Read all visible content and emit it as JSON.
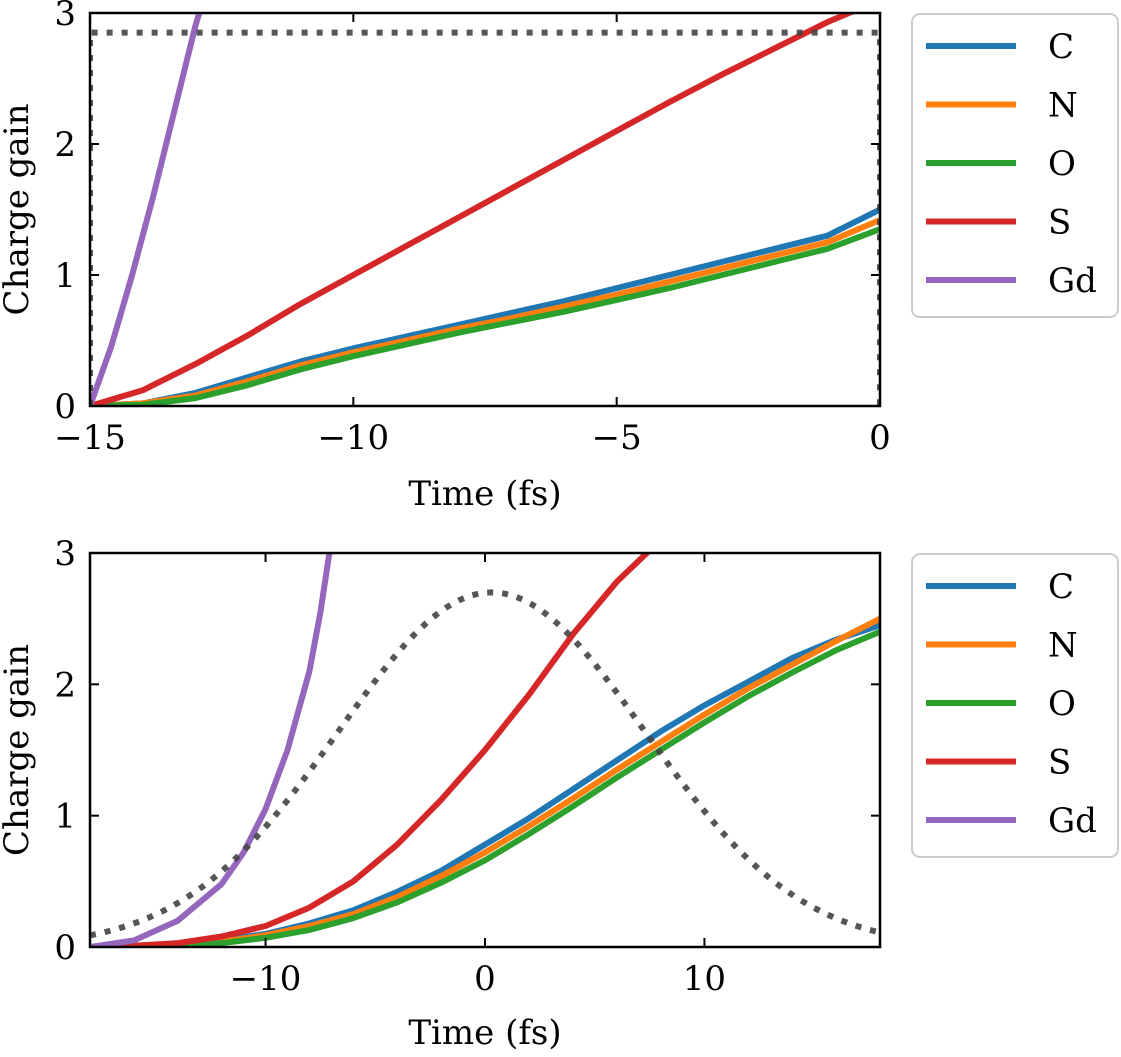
{
  "chart_data": [
    {
      "type": "line",
      "title": "",
      "xlabel": "Time (fs)",
      "ylabel": "Charge gain",
      "xlim": [
        -15,
        0
      ],
      "ylim": [
        0,
        3
      ],
      "xticks": [
        -15,
        -10,
        -5,
        0
      ],
      "xtick_labels": [
        "−15",
        "−10",
        "−5",
        "0"
      ],
      "yticks": [
        0,
        1,
        2,
        3
      ],
      "ytick_labels": [
        "0",
        "1",
        "2",
        "3"
      ],
      "legend_position": "outside-right",
      "series": [
        {
          "name": "C",
          "color": "#1f77b4",
          "x": [
            -15,
            -14,
            -13,
            -12,
            -11,
            -10,
            -9,
            -8,
            -7,
            -6,
            -5,
            -4,
            -3,
            -2,
            -1,
            0
          ],
          "y": [
            0,
            0.02,
            0.1,
            0.22,
            0.34,
            0.44,
            0.53,
            0.62,
            0.71,
            0.8,
            0.9,
            1.0,
            1.1,
            1.2,
            1.3,
            1.5
          ]
        },
        {
          "name": "N",
          "color": "#ff7f0e",
          "x": [
            -15,
            -14,
            -13,
            -12,
            -11,
            -10,
            -9,
            -8,
            -7,
            -6,
            -5,
            -4,
            -3,
            -2,
            -1,
            0
          ],
          "y": [
            0,
            0.02,
            0.08,
            0.19,
            0.31,
            0.41,
            0.5,
            0.59,
            0.67,
            0.76,
            0.85,
            0.95,
            1.05,
            1.15,
            1.25,
            1.42
          ]
        },
        {
          "name": "O",
          "color": "#2ca02c",
          "x": [
            -15,
            -14,
            -13,
            -12,
            -11,
            -10,
            -9,
            -8,
            -7,
            -6,
            -5,
            -4,
            -3,
            -2,
            -1,
            0
          ],
          "y": [
            0,
            0.01,
            0.06,
            0.16,
            0.28,
            0.38,
            0.47,
            0.56,
            0.64,
            0.72,
            0.81,
            0.9,
            1.0,
            1.1,
            1.2,
            1.35
          ]
        },
        {
          "name": "S",
          "color": "#d62728",
          "x": [
            -15,
            -14,
            -13,
            -12,
            -11,
            -10,
            -9,
            -8,
            -7,
            -6,
            -5,
            -4,
            -3,
            -2,
            -1,
            0
          ],
          "y": [
            0,
            0.12,
            0.32,
            0.54,
            0.78,
            1.0,
            1.22,
            1.44,
            1.66,
            1.88,
            2.1,
            2.32,
            2.53,
            2.73,
            2.93,
            3.1
          ]
        },
        {
          "name": "Gd",
          "color": "#9467bd",
          "x": [
            -15,
            -14.6,
            -14.2,
            -13.8,
            -13.4,
            -13.0,
            -12.7
          ],
          "y": [
            0,
            0.45,
            1.0,
            1.6,
            2.25,
            2.9,
            3.3
          ]
        },
        {
          "name": "pulse",
          "color": "#444444",
          "style": "dotted",
          "legend": false,
          "x": [
            -15,
            -15,
            0,
            0
          ],
          "y": [
            0,
            2.85,
            2.85,
            0
          ]
        }
      ]
    },
    {
      "type": "line",
      "title": "",
      "xlabel": "Time (fs)",
      "ylabel": "Charge gain",
      "xlim": [
        -18,
        18
      ],
      "ylim": [
        0,
        3
      ],
      "xticks": [
        -10,
        0,
        10
      ],
      "xtick_labels": [
        "−10",
        "0",
        "10"
      ],
      "yticks": [
        0,
        1,
        2,
        3
      ],
      "ytick_labels": [
        "0",
        "1",
        "2",
        "3"
      ],
      "legend_position": "outside-right",
      "series": [
        {
          "name": "C",
          "color": "#1f77b4",
          "x": [
            -18,
            -16,
            -14,
            -12,
            -10,
            -8,
            -6,
            -4,
            -2,
            0,
            2,
            4,
            6,
            8,
            10,
            12,
            14,
            16,
            18
          ],
          "y": [
            0,
            0.01,
            0.02,
            0.05,
            0.1,
            0.18,
            0.28,
            0.42,
            0.58,
            0.78,
            0.98,
            1.2,
            1.42,
            1.64,
            1.84,
            2.02,
            2.2,
            2.34,
            2.45
          ]
        },
        {
          "name": "N",
          "color": "#ff7f0e",
          "x": [
            -18,
            -16,
            -14,
            -12,
            -10,
            -8,
            -6,
            -4,
            -2,
            0,
            2,
            4,
            6,
            8,
            10,
            12,
            14,
            16,
            18
          ],
          "y": [
            0,
            0.01,
            0.02,
            0.04,
            0.09,
            0.16,
            0.25,
            0.38,
            0.54,
            0.72,
            0.92,
            1.13,
            1.35,
            1.56,
            1.77,
            1.97,
            2.15,
            2.33,
            2.5
          ]
        },
        {
          "name": "O",
          "color": "#2ca02c",
          "x": [
            -18,
            -16,
            -14,
            -12,
            -10,
            -8,
            -6,
            -4,
            -2,
            0,
            2,
            4,
            6,
            8,
            10,
            12,
            14,
            16,
            18
          ],
          "y": [
            0,
            0.005,
            0.01,
            0.03,
            0.07,
            0.13,
            0.22,
            0.34,
            0.49,
            0.66,
            0.86,
            1.07,
            1.29,
            1.5,
            1.71,
            1.91,
            2.09,
            2.26,
            2.4
          ]
        },
        {
          "name": "S",
          "color": "#d62728",
          "x": [
            -18,
            -16,
            -14,
            -12,
            -10,
            -8,
            -6,
            -4,
            -2,
            0,
            2,
            4,
            6,
            8
          ],
          "y": [
            0,
            0.01,
            0.03,
            0.08,
            0.16,
            0.3,
            0.5,
            0.78,
            1.12,
            1.5,
            1.92,
            2.38,
            2.78,
            3.1
          ]
        },
        {
          "name": "Gd",
          "color": "#9467bd",
          "x": [
            -18,
            -16,
            -14,
            -12,
            -11,
            -10,
            -9,
            -8,
            -7.5,
            -7
          ],
          "y": [
            0,
            0.05,
            0.2,
            0.48,
            0.72,
            1.05,
            1.5,
            2.1,
            2.55,
            3.1
          ]
        },
        {
          "name": "pulse",
          "color": "#444444",
          "style": "dotted",
          "legend": false,
          "gaussian": {
            "amplitude": 2.7,
            "center": 0.3,
            "sigma": 7.0
          },
          "x_range": [
            -18,
            18
          ]
        }
      ]
    }
  ]
}
